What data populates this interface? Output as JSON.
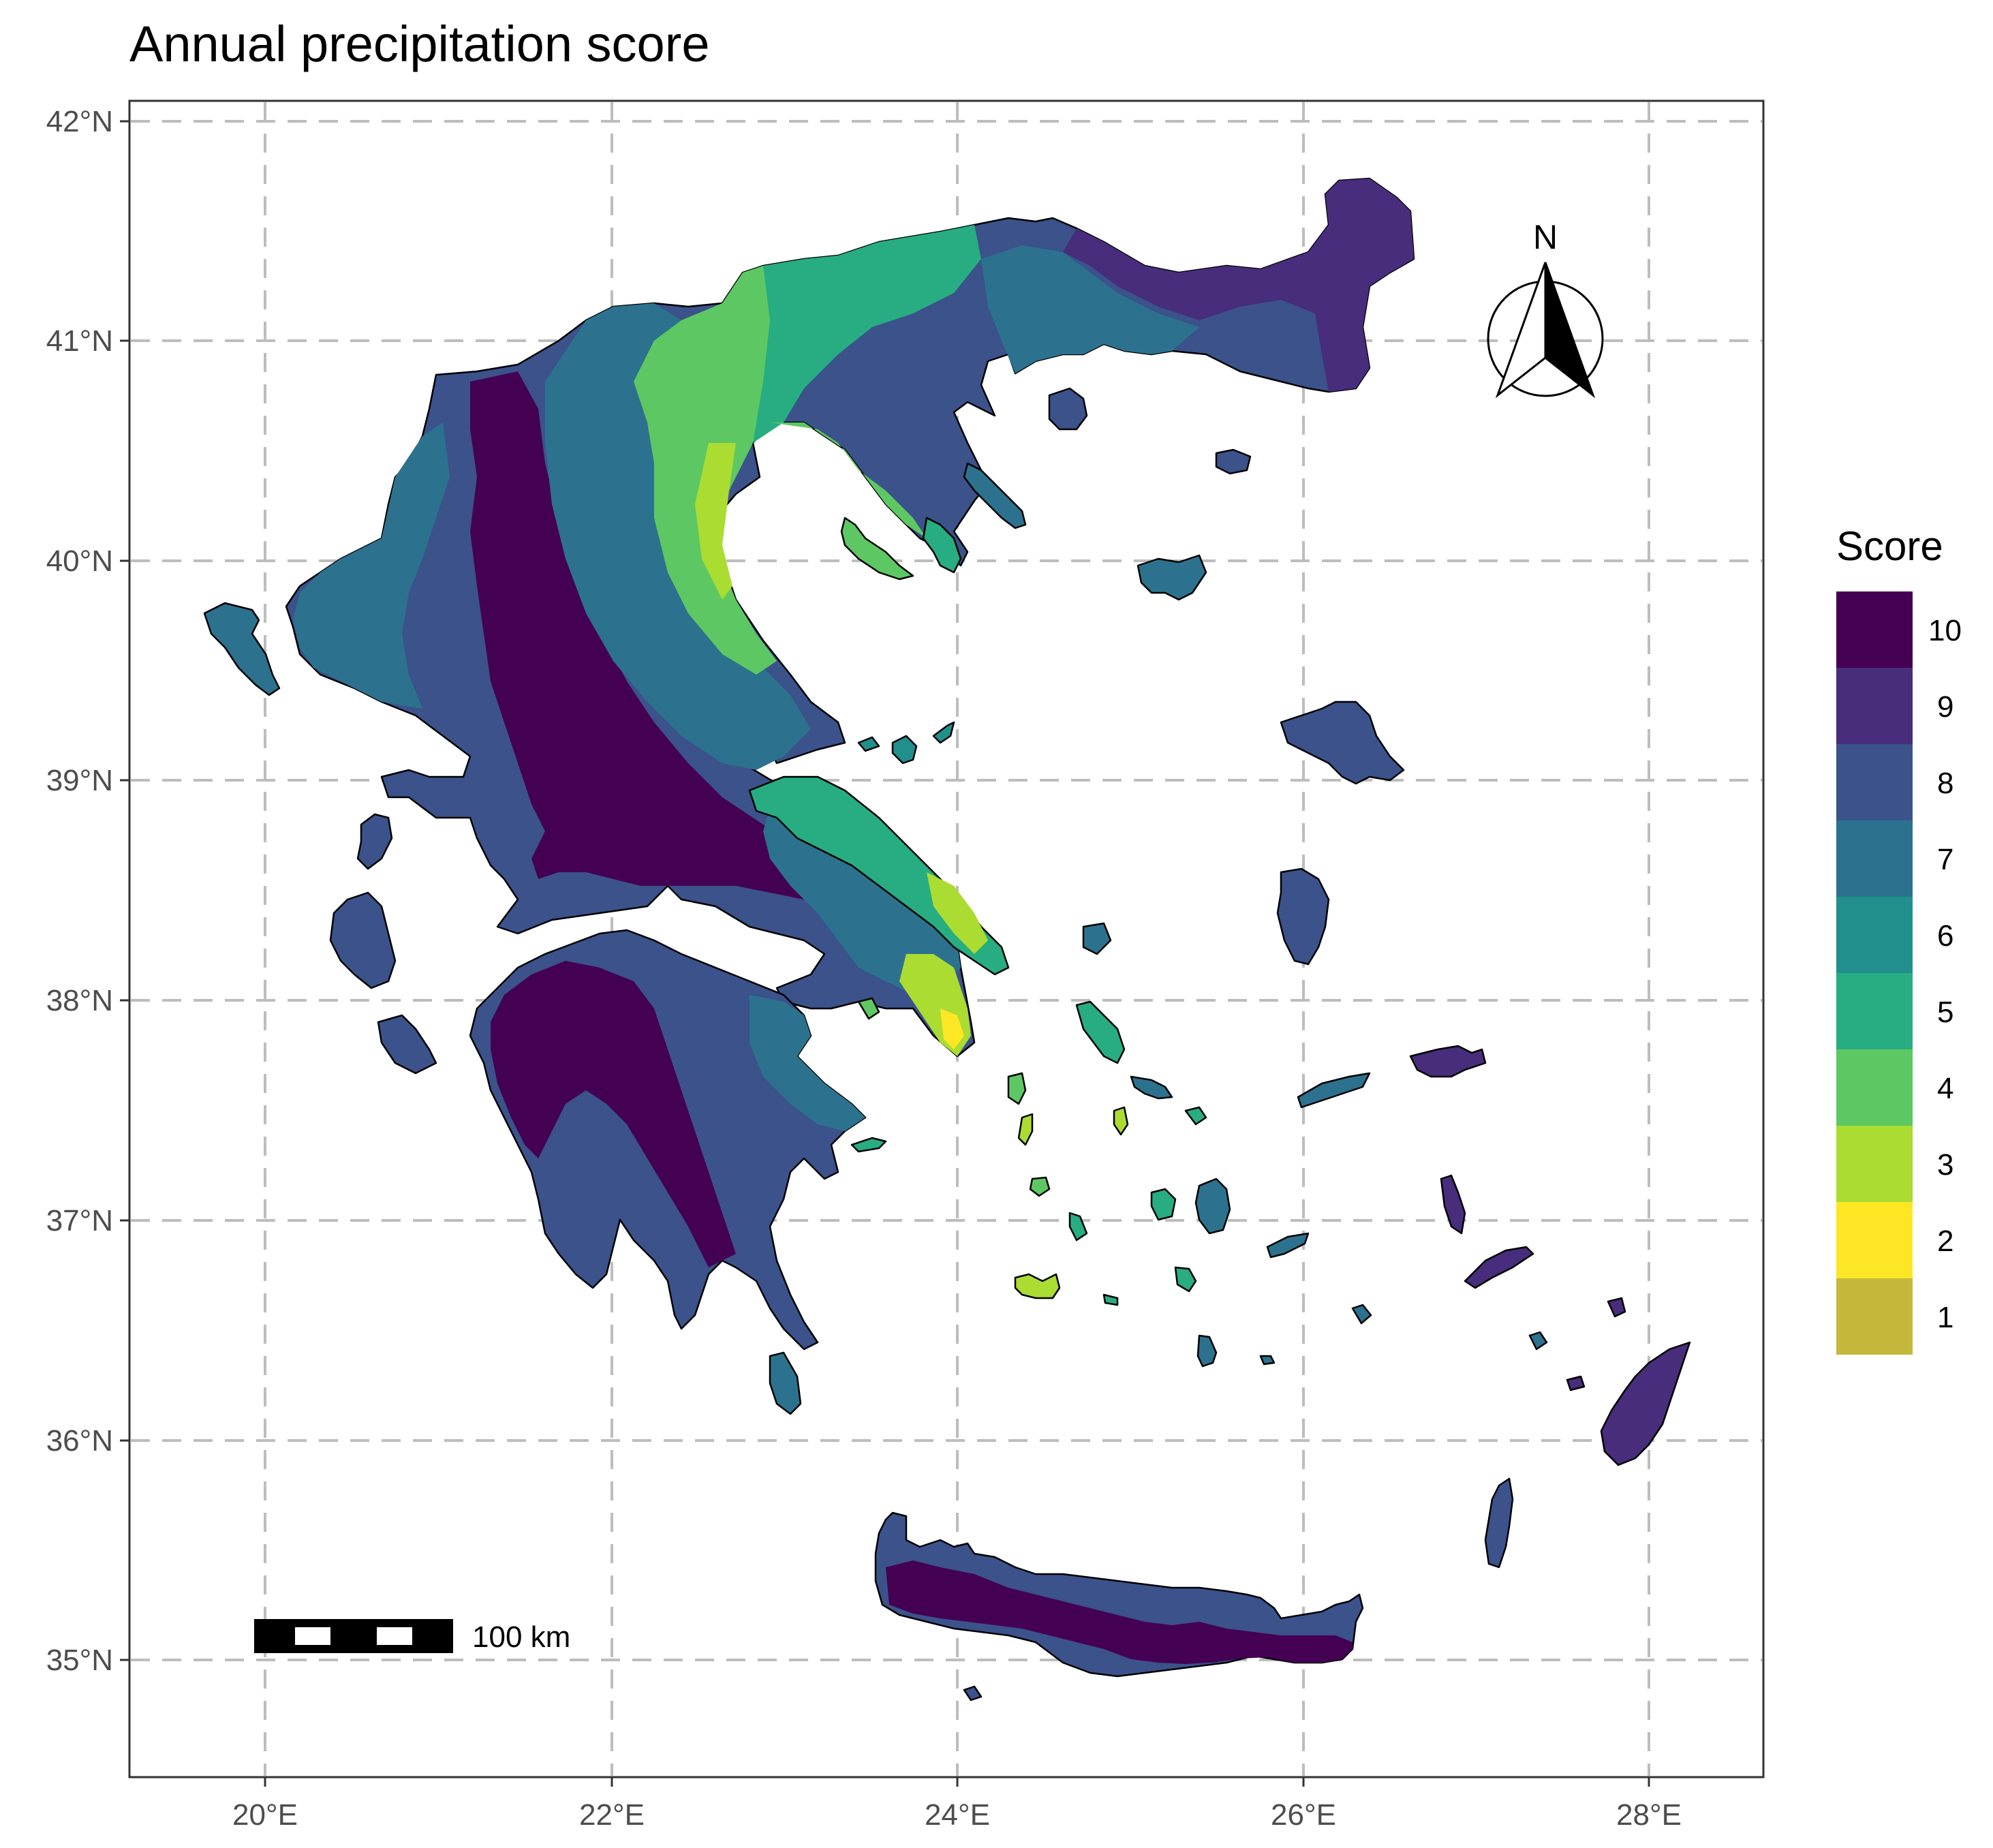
{
  "title": "Annual precipitation score",
  "axes": {
    "x_ticks": [
      "20°E",
      "22°E",
      "24°E",
      "26°E",
      "28°E"
    ],
    "y_ticks": [
      "42°N",
      "41°N",
      "40°N",
      "39°N",
      "38°N",
      "37°N",
      "36°N",
      "35°N"
    ]
  },
  "north_arrow": {
    "label": "N"
  },
  "scale_bar": {
    "label": "100 km"
  },
  "legend": {
    "title": "Score",
    "items": [
      {
        "label": "10",
        "color": "#440154"
      },
      {
        "label": "9",
        "color": "#472D7B"
      },
      {
        "label": "8",
        "color": "#3B528B"
      },
      {
        "label": "7",
        "color": "#2C728E"
      },
      {
        "label": "6",
        "color": "#21908C"
      },
      {
        "label": "5",
        "color": "#27AD81"
      },
      {
        "label": "4",
        "color": "#5DC863"
      },
      {
        "label": "3",
        "color": "#AADC32"
      },
      {
        "label": "2",
        "color": "#FDE725"
      },
      {
        "label": "1",
        "color": "#C3B83C"
      }
    ]
  }
}
